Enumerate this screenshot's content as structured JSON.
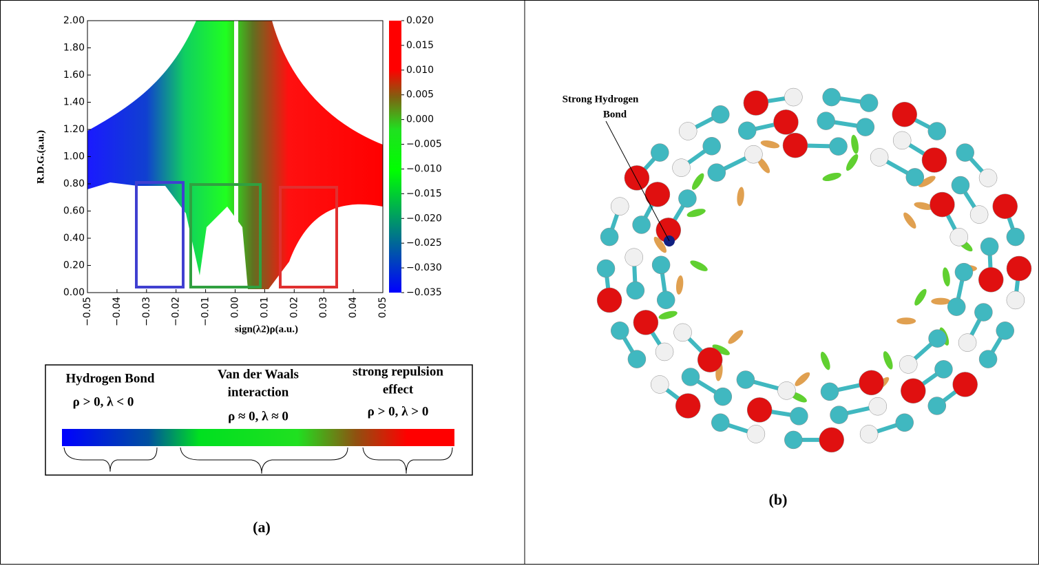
{
  "chart_data": {
    "type": "scatter",
    "xlabel": "sign(λ2)ρ(a.u.)",
    "ylabel": "R.D.G.(a.u.)",
    "xlim": [
      -0.05,
      0.05
    ],
    "xticks": [
      {
        "value": -0.05,
        "label": "−0.05"
      },
      {
        "value": -0.04,
        "label": "−0.04"
      },
      {
        "value": -0.03,
        "label": "−0.03"
      },
      {
        "value": -0.02,
        "label": "−0.02"
      },
      {
        "value": -0.01,
        "label": "−0.01"
      },
      {
        "value": 0,
        "label": "0.00"
      },
      {
        "value": 0.01,
        "label": "0.01"
      },
      {
        "value": 0.02,
        "label": "0.02"
      },
      {
        "value": 0.03,
        "label": "0.03"
      },
      {
        "value": 0.04,
        "label": "0.04"
      },
      {
        "value": 0.05,
        "label": "0.05"
      }
    ],
    "ylim": [
      0,
      2
    ],
    "yticks": [
      {
        "value": 0,
        "label": "0.00"
      },
      {
        "value": 0.2,
        "label": "0.20"
      },
      {
        "value": 0.4,
        "label": "0.40"
      },
      {
        "value": 0.6,
        "label": "0.60"
      },
      {
        "value": 0.8,
        "label": "0.80"
      },
      {
        "value": 1,
        "label": "1.00"
      },
      {
        "value": 1.2,
        "label": "1.20"
      },
      {
        "value": 1.4,
        "label": "1.40"
      },
      {
        "value": 1.6,
        "label": "1.60"
      },
      {
        "value": 1.8,
        "label": "1.80"
      },
      {
        "value": 2,
        "label": "2.00"
      }
    ],
    "clim": [
      -0.035,
      0.02
    ],
    "cticks": [
      {
        "value": 0.02,
        "label": "0.020"
      },
      {
        "value": 0.015,
        "label": "0.015"
      },
      {
        "value": 0.01,
        "label": "0.010"
      },
      {
        "value": 0.005,
        "label": "0.005"
      },
      {
        "value": 0,
        "label": "0.000"
      },
      {
        "value": -0.005,
        "label": "−0.005"
      },
      {
        "value": -0.01,
        "label": "−0.010"
      },
      {
        "value": -0.015,
        "label": "−0.015"
      },
      {
        "value": -0.02,
        "label": "−0.020"
      },
      {
        "value": -0.025,
        "label": "−0.025"
      },
      {
        "value": -0.03,
        "label": "−0.030"
      },
      {
        "value": -0.035,
        "label": "−0.035"
      }
    ]
  },
  "legend_box": {
    "hydrogen": [
      "Hydrogen Bond",
      "ρ  > 0, λ  < 0"
    ],
    "vdw": [
      "Van der Waals",
      "interaction",
      "ρ  ≈ 0, λ  ≈ 0"
    ],
    "repulsion": [
      "strong repulsion",
      "effect",
      "ρ  > 0, λ  > 0"
    ]
  },
  "panel_labels": [
    "(a)",
    "(b)"
  ],
  "annotation": [
    "Strong Hydrogen",
    "Bond"
  ]
}
